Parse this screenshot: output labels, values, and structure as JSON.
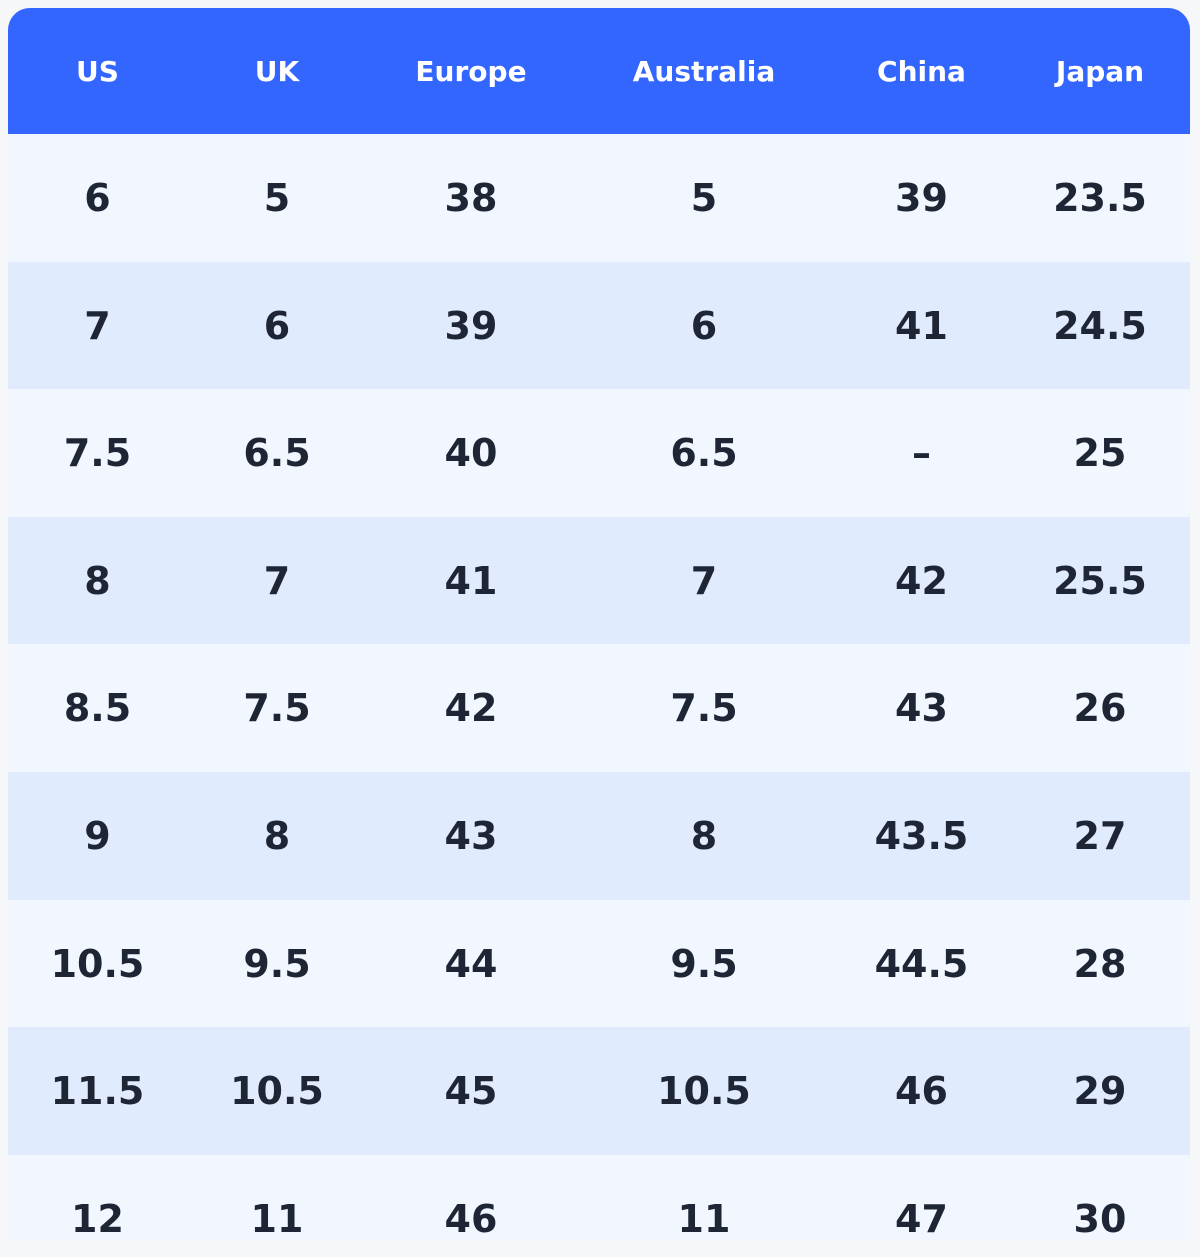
{
  "table": {
    "header": [
      "US",
      "UK",
      "Europe",
      "Australia",
      "China",
      "Japan"
    ],
    "rows": [
      [
        "6",
        "5",
        "38",
        "5",
        "39",
        "23.5"
      ],
      [
        "7",
        "6",
        "39",
        "6",
        "41",
        "24.5"
      ],
      [
        "7.5",
        "6.5",
        "40",
        "6.5",
        "–",
        "25"
      ],
      [
        "8",
        "7",
        "41",
        "7",
        "42",
        "25.5"
      ],
      [
        "8.5",
        "7.5",
        "42",
        "7.5",
        "43",
        "26"
      ],
      [
        "9",
        "8",
        "43",
        "8",
        "43.5",
        "27"
      ],
      [
        "10.5",
        "9.5",
        "44",
        "9.5",
        "44.5",
        "28"
      ],
      [
        "11.5",
        "10.5",
        "45",
        "10.5",
        "46",
        "29"
      ],
      [
        "12",
        "11",
        "46",
        "11",
        "47",
        "30"
      ]
    ]
  }
}
